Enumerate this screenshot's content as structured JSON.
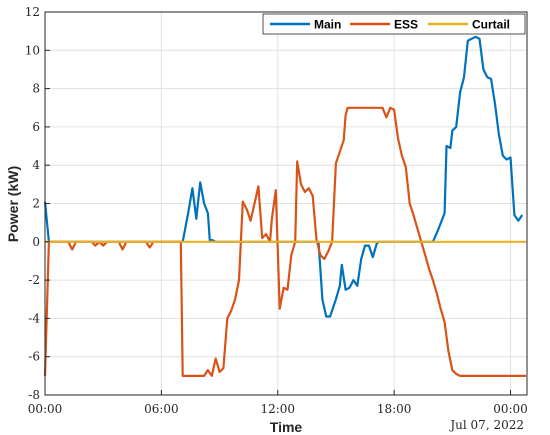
{
  "chart_data": {
    "type": "line",
    "xlabel": "Time",
    "ylabel": "Power (kW)",
    "date_label": "Jul 07, 2022",
    "xlim": [
      "00:00",
      "24:00"
    ],
    "ylim": [
      -8,
      12
    ],
    "grid": true,
    "legend_position": "top-right",
    "x_ticks": [
      {
        "hour": 0,
        "label": "00:00"
      },
      {
        "hour": 6,
        "label": "06:00"
      },
      {
        "hour": 12,
        "label": "12:00"
      },
      {
        "hour": 18,
        "label": "18:00"
      },
      {
        "hour": 24,
        "label": "00:00"
      }
    ],
    "y_ticks": [
      {
        "value": -8,
        "label": "-8"
      },
      {
        "value": -6,
        "label": "-6"
      },
      {
        "value": -4,
        "label": "-4"
      },
      {
        "value": -2,
        "label": "-2"
      },
      {
        "value": 0,
        "label": "0"
      },
      {
        "value": 2,
        "label": "2"
      },
      {
        "value": 4,
        "label": "4"
      },
      {
        "value": 6,
        "label": "6"
      },
      {
        "value": 8,
        "label": "8"
      },
      {
        "value": 10,
        "label": "10"
      },
      {
        "value": 12,
        "label": "12"
      }
    ],
    "series": [
      {
        "name": "Main",
        "color": "#0072BD",
        "points": [
          [
            0.0,
            2.1
          ],
          [
            0.2,
            0.0
          ],
          [
            7.1,
            0.0
          ],
          [
            7.4,
            1.6
          ],
          [
            7.6,
            2.8
          ],
          [
            7.8,
            1.2
          ],
          [
            8.0,
            3.1
          ],
          [
            8.2,
            2.0
          ],
          [
            8.4,
            1.5
          ],
          [
            8.5,
            0.0
          ],
          [
            8.6,
            0.1
          ],
          [
            8.8,
            0.0
          ],
          [
            14.1,
            0.0
          ],
          [
            14.3,
            -3.0
          ],
          [
            14.5,
            -3.9
          ],
          [
            14.7,
            -3.9
          ],
          [
            15.0,
            -3.0
          ],
          [
            15.2,
            -2.3
          ],
          [
            15.3,
            -1.2
          ],
          [
            15.5,
            -2.5
          ],
          [
            15.7,
            -2.4
          ],
          [
            15.9,
            -2.0
          ],
          [
            16.1,
            -2.3
          ],
          [
            16.3,
            -0.9
          ],
          [
            16.5,
            -0.2
          ],
          [
            16.7,
            -0.2
          ],
          [
            16.9,
            -0.8
          ],
          [
            17.1,
            -0.1
          ],
          [
            17.2,
            0.0
          ],
          [
            20.0,
            0.0
          ],
          [
            20.3,
            0.7
          ],
          [
            20.6,
            1.5
          ],
          [
            20.7,
            5.0
          ],
          [
            20.9,
            4.9
          ],
          [
            21.0,
            5.8
          ],
          [
            21.2,
            6.0
          ],
          [
            21.4,
            7.8
          ],
          [
            21.6,
            8.6
          ],
          [
            21.8,
            10.5
          ],
          [
            22.0,
            10.6
          ],
          [
            22.2,
            10.7
          ],
          [
            22.4,
            10.6
          ],
          [
            22.6,
            9.0
          ],
          [
            22.8,
            8.6
          ],
          [
            23.0,
            8.5
          ],
          [
            23.2,
            7.2
          ],
          [
            23.4,
            5.6
          ],
          [
            23.6,
            4.5
          ],
          [
            23.8,
            4.3
          ],
          [
            24.0,
            4.4
          ],
          [
            24.2,
            1.4
          ],
          [
            24.4,
            1.1
          ],
          [
            24.6,
            1.4
          ]
        ]
      },
      {
        "name": "ESS",
        "color": "#D95319",
        "points": [
          [
            0.0,
            -7.0
          ],
          [
            0.2,
            0.0
          ],
          [
            1.2,
            0.0
          ],
          [
            1.4,
            -0.4
          ],
          [
            1.6,
            0.0
          ],
          [
            2.4,
            0.0
          ],
          [
            2.6,
            -0.2
          ],
          [
            2.8,
            0.0
          ],
          [
            3.0,
            -0.2
          ],
          [
            3.2,
            0.0
          ],
          [
            3.8,
            0.0
          ],
          [
            4.0,
            -0.4
          ],
          [
            4.2,
            0.0
          ],
          [
            5.2,
            0.0
          ],
          [
            5.4,
            -0.3
          ],
          [
            5.6,
            0.0
          ],
          [
            7.0,
            0.0
          ],
          [
            7.1,
            -7.0
          ],
          [
            8.2,
            -7.0
          ],
          [
            8.4,
            -6.7
          ],
          [
            8.6,
            -7.0
          ],
          [
            8.8,
            -6.1
          ],
          [
            9.0,
            -6.8
          ],
          [
            9.2,
            -6.6
          ],
          [
            9.4,
            -4.0
          ],
          [
            9.6,
            -3.6
          ],
          [
            9.8,
            -3.0
          ],
          [
            10.0,
            -2.0
          ],
          [
            10.2,
            2.1
          ],
          [
            10.4,
            1.7
          ],
          [
            10.6,
            1.1
          ],
          [
            10.8,
            2.0
          ],
          [
            11.0,
            2.9
          ],
          [
            11.2,
            0.2
          ],
          [
            11.4,
            0.4
          ],
          [
            11.6,
            0.0
          ],
          [
            11.7,
            1.2
          ],
          [
            11.9,
            2.7
          ],
          [
            12.1,
            -3.5
          ],
          [
            12.3,
            -2.4
          ],
          [
            12.5,
            -2.5
          ],
          [
            12.7,
            -0.7
          ],
          [
            12.9,
            0.0
          ],
          [
            13.0,
            4.2
          ],
          [
            13.2,
            3.0
          ],
          [
            13.4,
            2.6
          ],
          [
            13.6,
            2.8
          ],
          [
            13.8,
            2.4
          ],
          [
            14.0,
            0.1
          ],
          [
            14.2,
            -0.7
          ],
          [
            14.4,
            -0.9
          ],
          [
            14.6,
            -0.5
          ],
          [
            14.8,
            0.0
          ],
          [
            15.0,
            4.1
          ],
          [
            15.2,
            4.7
          ],
          [
            15.4,
            5.3
          ],
          [
            15.5,
            6.6
          ],
          [
            15.6,
            7.0
          ],
          [
            17.4,
            7.0
          ],
          [
            17.6,
            6.5
          ],
          [
            17.8,
            7.0
          ],
          [
            18.0,
            6.9
          ],
          [
            18.2,
            5.4
          ],
          [
            18.4,
            4.5
          ],
          [
            18.6,
            3.9
          ],
          [
            18.8,
            2.0
          ],
          [
            19.0,
            1.4
          ],
          [
            19.2,
            0.7
          ],
          [
            19.4,
            0.0
          ],
          [
            19.6,
            -0.7
          ],
          [
            19.8,
            -1.4
          ],
          [
            20.0,
            -2.0
          ],
          [
            20.2,
            -2.7
          ],
          [
            20.4,
            -3.5
          ],
          [
            20.6,
            -4.2
          ],
          [
            20.8,
            -5.7
          ],
          [
            21.0,
            -6.7
          ],
          [
            21.2,
            -6.9
          ],
          [
            21.4,
            -7.0
          ],
          [
            24.8,
            -7.0
          ]
        ]
      },
      {
        "name": "Curtail",
        "color": "#EDB120",
        "points": [
          [
            0.0,
            0.0
          ],
          [
            24.8,
            0.0
          ]
        ]
      }
    ]
  }
}
